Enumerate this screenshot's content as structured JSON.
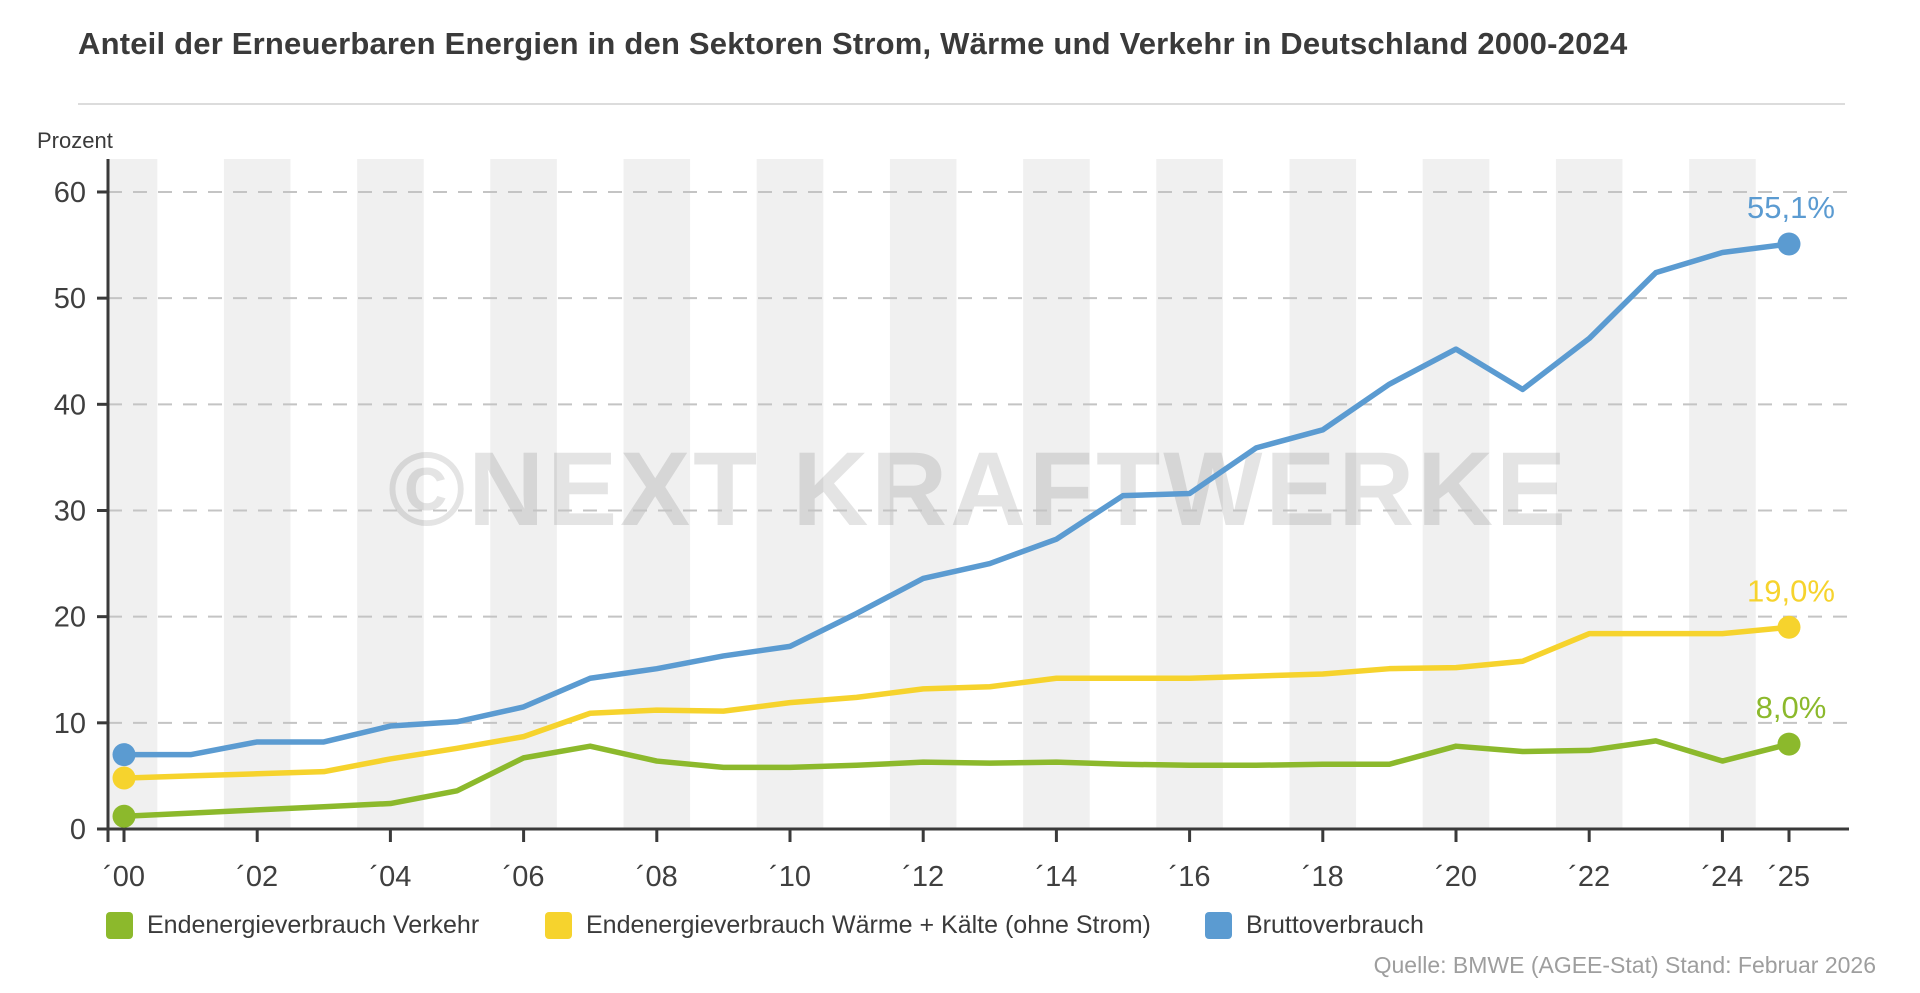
{
  "header": {
    "title": "Anteil der Erneuerbaren Energien in den Sektoren Strom, Wärme und Verkehr in Deutschland 2000-2024"
  },
  "chart_data": {
    "type": "line",
    "title": "Anteil der Erneuerbaren Energien in den Sektoren Strom, Wärme und Verkehr in Deutschland 2000-2024",
    "ylabel": "Prozent",
    "ylim": [
      0,
      63
    ],
    "grid": "dashed-horizontal",
    "background_bands": "alternating vertical 1-year stripes centered on even years",
    "band_color": "#f0f0f0",
    "x": [
      2000,
      2001,
      2002,
      2003,
      2004,
      2005,
      2006,
      2007,
      2008,
      2009,
      2010,
      2011,
      2012,
      2013,
      2014,
      2015,
      2016,
      2017,
      2018,
      2019,
      2020,
      2021,
      2022,
      2023,
      2024,
      2025
    ],
    "x_tick_years": [
      2000,
      2002,
      2004,
      2006,
      2008,
      2010,
      2012,
      2014,
      2016,
      2018,
      2020,
      2022,
      2024,
      2025
    ],
    "x_tick_labels": [
      "´00",
      "´02",
      "´04",
      "´06",
      "´08",
      "´10",
      "´12",
      "´14",
      "´16",
      "´18",
      "´20",
      "´22",
      "´24",
      "´25"
    ],
    "y_ticks": [
      0,
      10,
      20,
      30,
      40,
      50,
      60
    ],
    "series": [
      {
        "name": "Endenergieverbrauch Verkehr",
        "color": "#8cb92c",
        "end_label": "8,0%",
        "values": [
          1.2,
          1.5,
          1.8,
          2.1,
          2.4,
          3.6,
          6.7,
          7.8,
          6.4,
          5.8,
          5.8,
          6.0,
          6.3,
          6.2,
          6.3,
          6.1,
          6.0,
          6.0,
          6.1,
          6.1,
          7.8,
          7.3,
          7.4,
          8.3,
          6.4,
          8.0
        ]
      },
      {
        "name": "Endenergieverbrauch Wärme + Kälte (ohne Strom)",
        "color": "#f6d32d",
        "end_label": "19,0%",
        "values": [
          4.8,
          5.0,
          5.2,
          5.4,
          6.6,
          7.6,
          8.7,
          10.9,
          11.2,
          11.1,
          11.9,
          12.4,
          13.2,
          13.4,
          14.2,
          14.2,
          14.2,
          14.4,
          14.6,
          15.1,
          15.2,
          15.8,
          18.4,
          18.4,
          18.4,
          19.0
        ]
      },
      {
        "name": "Bruttoverbrauch",
        "color": "#5b9bd1",
        "end_label": "55,1%",
        "values": [
          7.0,
          7.0,
          8.2,
          8.2,
          9.7,
          10.1,
          11.5,
          14.2,
          15.1,
          16.3,
          17.2,
          20.3,
          23.6,
          25.0,
          27.3,
          31.4,
          31.6,
          35.9,
          37.6,
          41.9,
          45.2,
          41.4,
          46.2,
          52.4,
          54.3,
          55.1
        ]
      }
    ],
    "watermark": "©NEXT KRAFTWERKE",
    "legend_position": "bottom"
  },
  "footer": {
    "source": "Quelle: BMWE (AGEE-Stat) Stand: Februar 2026"
  }
}
